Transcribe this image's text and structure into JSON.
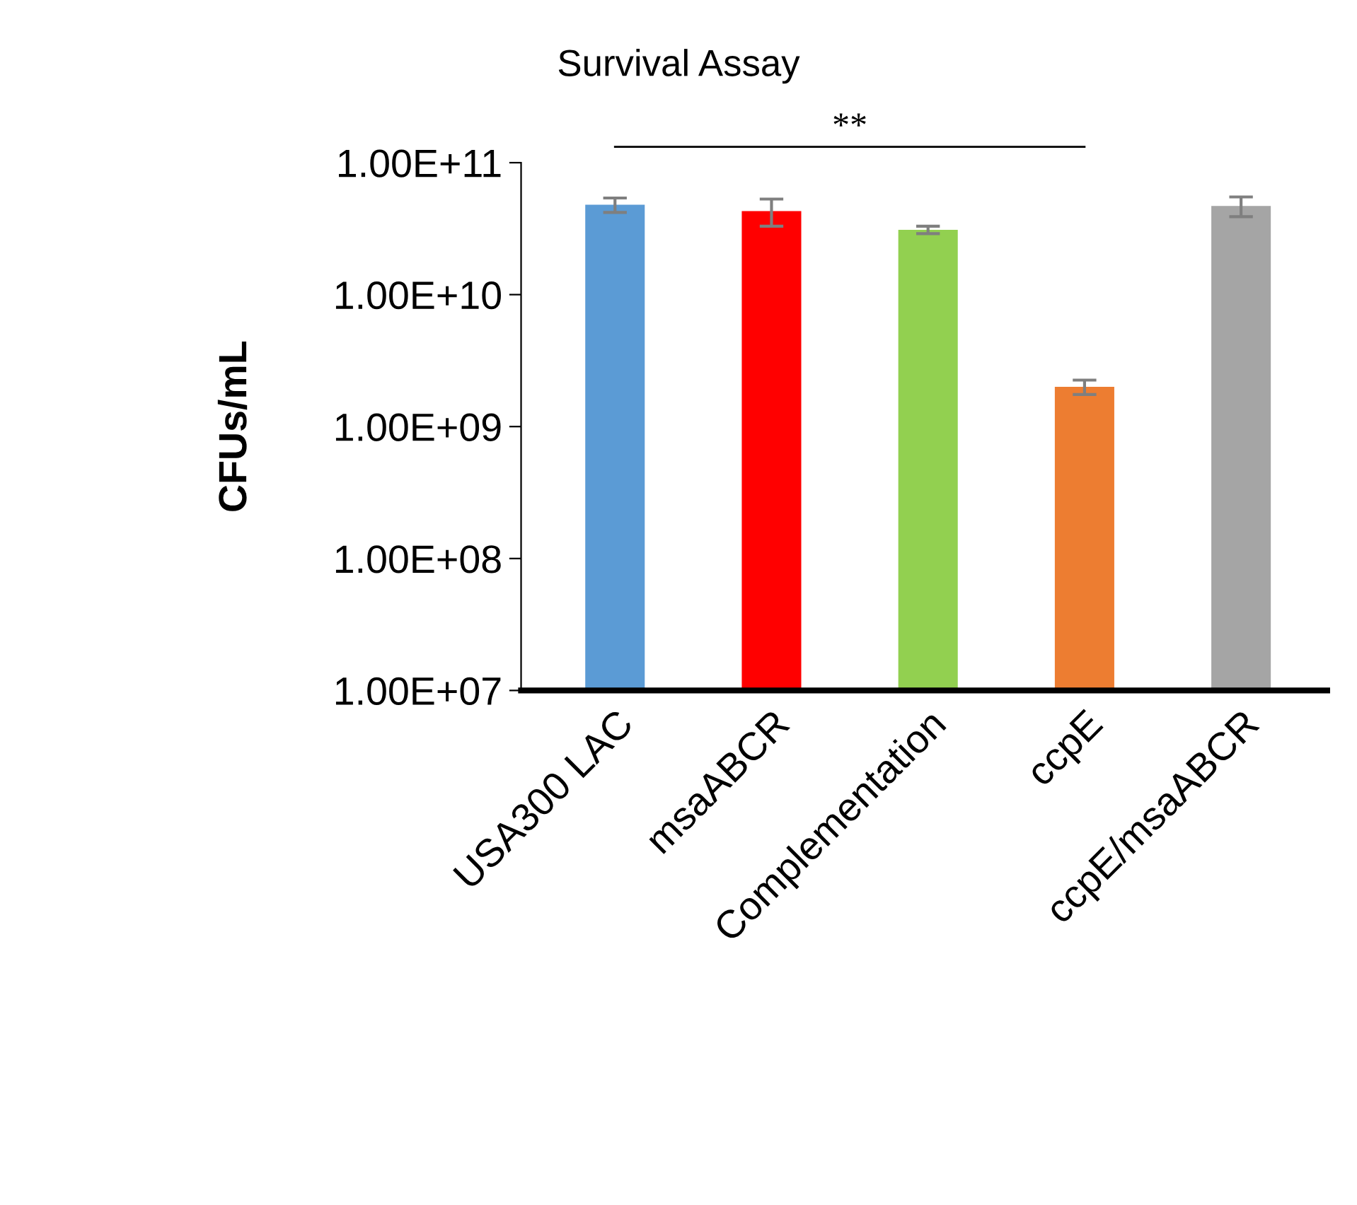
{
  "chart_data": {
    "type": "bar",
    "title": "Survival Assay",
    "ylabel": "CFUs/mL",
    "categories": [
      "USA300 LAC",
      "msaABCR",
      "Complementation",
      "ccpE",
      "ccpE/msaABCR"
    ],
    "values": [
      48000000000.0,
      43000000000.0,
      31000000000.0,
      2000000000.0,
      47000000000.0
    ],
    "errors": [
      6000000000.0,
      10000000000.0,
      2000000000.0,
      250000000.0,
      8000000000.0
    ],
    "colors": [
      "#5b9bd5",
      "#ff0000",
      "#92d050",
      "#ed7d31",
      "#a5a5a5"
    ],
    "log": true,
    "ylim": [
      10000000.0,
      100000000000.0
    ],
    "yticks": [
      {
        "value": 10000000.0,
        "label": "1.00E+07"
      },
      {
        "value": 100000000.0,
        "label": "1.00E+08"
      },
      {
        "value": 1000000000.0,
        "label": "1.00E+09"
      },
      {
        "value": 10000000000.0,
        "label": "1.00E+10"
      },
      {
        "value": 100000000000.0,
        "label": "1.00E+11"
      }
    ],
    "grid": false,
    "legend": false,
    "annotations": [
      "**"
    ]
  }
}
